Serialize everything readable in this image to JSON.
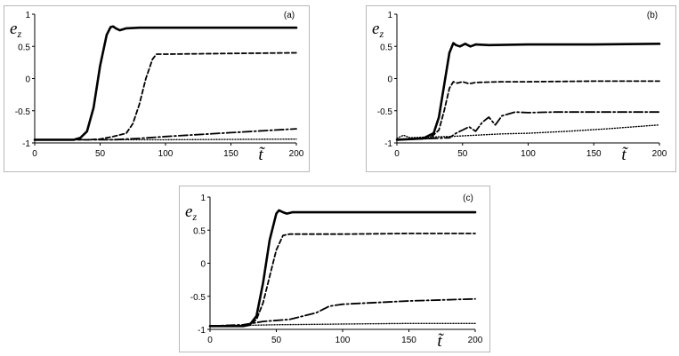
{
  "chart_data": [
    {
      "type": "line",
      "panel_label": "(a)",
      "ylabel": "e_z",
      "xlabel": "t̃",
      "xlim": [
        0,
        200
      ],
      "ylim": [
        -1,
        1
      ],
      "x_ticks": [
        "0",
        "50",
        "100",
        "150",
        "200"
      ],
      "y_ticks": [
        "1",
        "0.5",
        "0",
        "-0.5",
        "-1"
      ],
      "grid": false,
      "series": [
        {
          "style": "solid",
          "x": [
            0,
            30,
            35,
            40,
            45,
            50,
            55,
            58,
            60,
            62,
            65,
            70,
            80,
            100,
            150,
            200
          ],
          "y": [
            -0.95,
            -0.95,
            -0.92,
            -0.82,
            -0.45,
            0.2,
            0.68,
            0.8,
            0.81,
            0.78,
            0.75,
            0.78,
            0.79,
            0.79,
            0.79,
            0.79
          ]
        },
        {
          "style": "dashed",
          "x": [
            0,
            40,
            50,
            60,
            70,
            75,
            80,
            85,
            90,
            93,
            100,
            150,
            200
          ],
          "y": [
            -0.95,
            -0.95,
            -0.94,
            -0.9,
            -0.85,
            -0.7,
            -0.4,
            0.0,
            0.3,
            0.38,
            0.38,
            0.39,
            0.4
          ]
        },
        {
          "style": "dashdot",
          "x": [
            0,
            40,
            60,
            80,
            100,
            150,
            200
          ],
          "y": [
            -0.95,
            -0.95,
            -0.95,
            -0.93,
            -0.9,
            -0.84,
            -0.78
          ]
        },
        {
          "style": "dotted",
          "x": [
            0,
            100,
            200
          ],
          "y": [
            -0.95,
            -0.95,
            -0.94
          ]
        }
      ]
    },
    {
      "type": "line",
      "panel_label": "(b)",
      "ylabel": "e_z",
      "xlabel": "t̃",
      "xlim": [
        0,
        200
      ],
      "ylim": [
        -1,
        1
      ],
      "x_ticks": [
        "0",
        "50",
        "100",
        "150",
        "200"
      ],
      "y_ticks": [
        "1",
        "0.5",
        "0",
        "-0.5",
        "-1"
      ],
      "grid": false,
      "series": [
        {
          "style": "solid",
          "x": [
            0,
            20,
            28,
            32,
            36,
            40,
            43,
            45,
            48,
            52,
            56,
            60,
            70,
            100,
            150,
            200
          ],
          "y": [
            -0.95,
            -0.93,
            -0.85,
            -0.6,
            -0.1,
            0.4,
            0.55,
            0.52,
            0.5,
            0.54,
            0.5,
            0.53,
            0.52,
            0.53,
            0.53,
            0.54
          ]
        },
        {
          "style": "dashed",
          "x": [
            0,
            25,
            32,
            36,
            40,
            43,
            46,
            50,
            55,
            60,
            80,
            100,
            150,
            200
          ],
          "y": [
            -0.95,
            -0.93,
            -0.8,
            -0.5,
            -0.15,
            -0.05,
            -0.07,
            -0.05,
            -0.08,
            -0.06,
            -0.05,
            -0.05,
            -0.04,
            -0.04
          ]
        },
        {
          "style": "dashdot",
          "x": [
            0,
            40,
            45,
            50,
            55,
            60,
            65,
            70,
            75,
            80,
            85,
            90,
            100,
            120,
            150,
            200
          ],
          "y": [
            -0.95,
            -0.92,
            -0.85,
            -0.8,
            -0.75,
            -0.82,
            -0.68,
            -0.6,
            -0.72,
            -0.58,
            -0.55,
            -0.52,
            -0.53,
            -0.52,
            -0.52,
            -0.52
          ]
        },
        {
          "style": "dotted",
          "x": [
            0,
            5,
            10,
            20,
            40,
            60,
            80,
            100,
            130,
            160,
            200
          ],
          "y": [
            -0.93,
            -0.88,
            -0.92,
            -0.91,
            -0.9,
            -0.88,
            -0.86,
            -0.85,
            -0.82,
            -0.78,
            -0.72
          ]
        }
      ]
    },
    {
      "type": "line",
      "panel_label": "(c)",
      "ylabel": "e_z",
      "xlabel": "t̃",
      "xlim": [
        0,
        200
      ],
      "ylim": [
        -1,
        1
      ],
      "x_ticks": [
        "0",
        "50",
        "100",
        "150",
        "200"
      ],
      "y_ticks": [
        "1",
        "0.5",
        "0",
        "-0.5",
        "-1"
      ],
      "grid": false,
      "series": [
        {
          "style": "solid",
          "x": [
            0,
            25,
            30,
            35,
            40,
            45,
            50,
            52,
            55,
            58,
            62,
            70,
            100,
            150,
            200
          ],
          "y": [
            -0.95,
            -0.95,
            -0.93,
            -0.8,
            -0.3,
            0.35,
            0.75,
            0.8,
            0.77,
            0.75,
            0.77,
            0.77,
            0.77,
            0.77,
            0.77
          ]
        },
        {
          "style": "dashed",
          "x": [
            0,
            25,
            30,
            35,
            40,
            45,
            50,
            55,
            60,
            65,
            100,
            150,
            200
          ],
          "y": [
            -0.95,
            -0.95,
            -0.93,
            -0.85,
            -0.6,
            -0.2,
            0.2,
            0.42,
            0.44,
            0.44,
            0.44,
            0.45,
            0.45
          ]
        },
        {
          "style": "dashdot",
          "x": [
            0,
            25,
            40,
            60,
            80,
            90,
            100,
            120,
            150,
            200
          ],
          "y": [
            -0.95,
            -0.93,
            -0.88,
            -0.85,
            -0.75,
            -0.65,
            -0.62,
            -0.6,
            -0.57,
            -0.54
          ]
        },
        {
          "style": "dotted",
          "x": [
            0,
            50,
            100,
            150,
            200
          ],
          "y": [
            -0.95,
            -0.93,
            -0.92,
            -0.91,
            -0.91
          ]
        }
      ]
    }
  ]
}
